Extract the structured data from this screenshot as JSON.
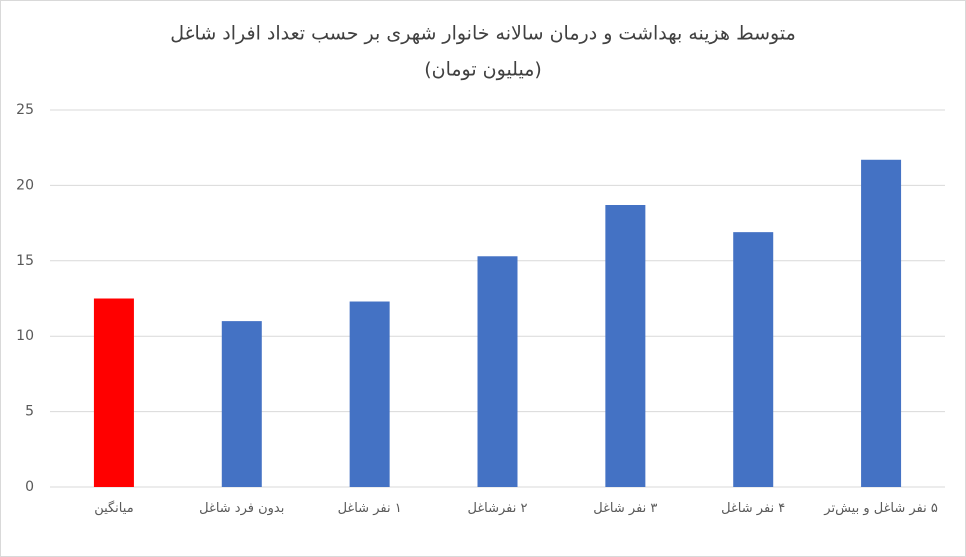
{
  "chart_data": {
    "type": "bar",
    "title": "متوسط هزینه بهداشت و درمان سالانه خانوار شهری بر حسب تعداد افراد شاغل",
    "subtitle": "(میلیون تومان)",
    "categories": [
      "میانگین",
      "بدون فرد شاغل",
      "۱ نفر شاغل",
      "۲ نفرشاغل",
      "۳ نفر شاغل",
      "۴ نفر شاغل",
      "۵ نفر شاغل و بیش‌تر"
    ],
    "values": [
      12.5,
      11,
      12.3,
      15.3,
      18.7,
      16.9,
      21.7
    ],
    "colors": [
      "#ff0000",
      "#4472c4",
      "#4472c4",
      "#4472c4",
      "#4472c4",
      "#4472c4",
      "#4472c4"
    ],
    "ylim": [
      0,
      25
    ],
    "yticks": [
      0,
      5,
      10,
      15,
      20,
      25
    ],
    "grid": true
  }
}
